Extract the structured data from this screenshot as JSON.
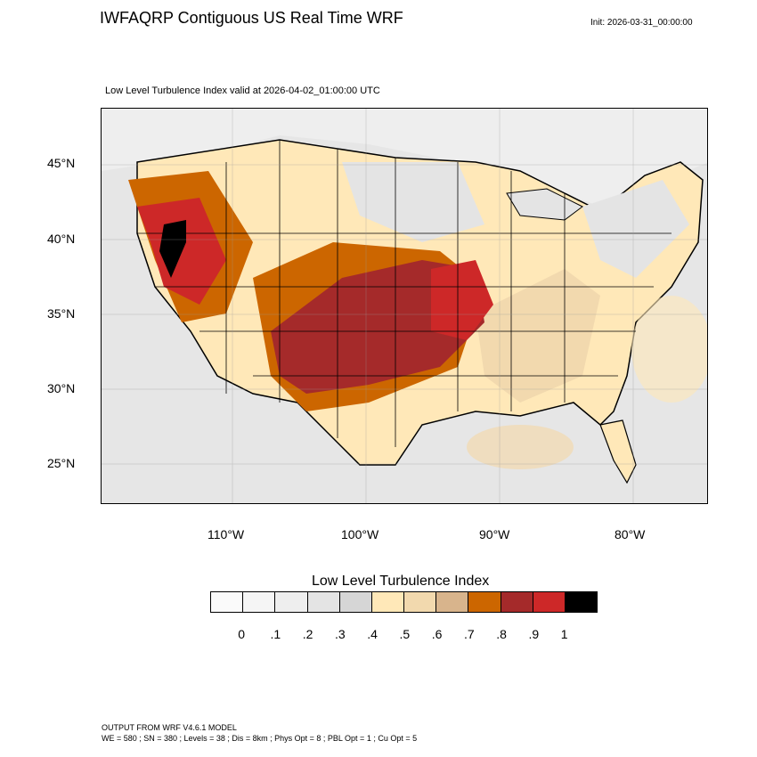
{
  "header": {
    "title": "IWFAQRP Contiguous US Real Time WRF",
    "init": "Init: 2026-03-31_00:00:00",
    "subtitle": "Low Level Turbulence Index valid at 2026-04-02_01:00:00 UTC"
  },
  "map": {
    "lat_labels": [
      "45°N",
      "40°N",
      "35°N",
      "30°N",
      "25°N"
    ],
    "lon_labels": [
      "110°W",
      "100°W",
      "90°W",
      "80°W"
    ],
    "colors": {
      "ocean_low": "#e6e6e6",
      "land_low": "#ffe8b8",
      "moderate": "#d8b48c",
      "orange": "#cc6600",
      "dark_red": "#a52a2a",
      "red": "#cd2828",
      "black": "#000000"
    }
  },
  "colorbar": {
    "title": "Low Level Turbulence Index",
    "labels": [
      "0",
      ".1",
      ".2",
      ".3",
      ".4",
      ".5",
      ".6",
      ".7",
      ".8",
      ".9",
      "1"
    ],
    "colors": [
      "#fafafa",
      "#f5f5f5",
      "#eeeeee",
      "#e4e4e4",
      "#d6d6d6",
      "#ffe8b8",
      "#f2d9ae",
      "#d8b48c",
      "#cc6600",
      "#a52a2a",
      "#cd2828",
      "#000000"
    ]
  },
  "footer": {
    "line1": "OUTPUT FROM WRF V4.6.1 MODEL",
    "line2": "WE = 580 ; SN = 380 ; Levels = 38 ; Dis = 8km ; Phys Opt = 8 ; PBL Opt = 1 ; Cu Opt = 5"
  }
}
